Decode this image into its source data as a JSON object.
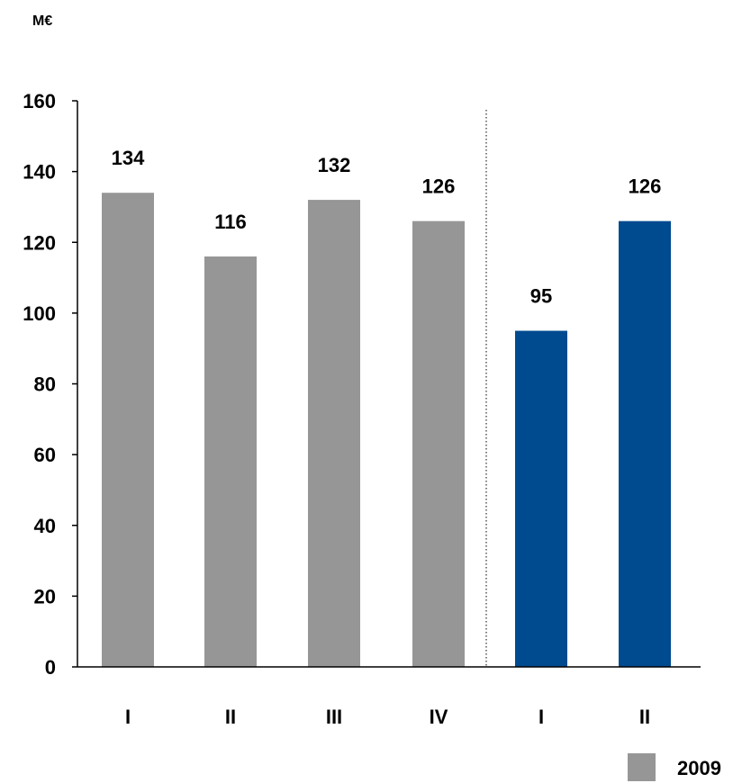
{
  "chart_data": {
    "type": "bar",
    "ylabel": "M€",
    "ylim": [
      0,
      160
    ],
    "yticks": [
      0,
      20,
      40,
      60,
      80,
      100,
      120,
      140,
      160
    ],
    "categories": [
      "I",
      "II",
      "III",
      "IV",
      "I",
      "II"
    ],
    "values": [
      134,
      116,
      132,
      126,
      95,
      126
    ],
    "colors": [
      "#969696",
      "#969696",
      "#969696",
      "#969696",
      "#004a8f",
      "#004a8f"
    ],
    "grid": false,
    "separator_after_index": 3,
    "legend": {
      "position": "bottom-right",
      "entries": [
        {
          "label": "2009",
          "color": "#969696"
        }
      ]
    }
  }
}
